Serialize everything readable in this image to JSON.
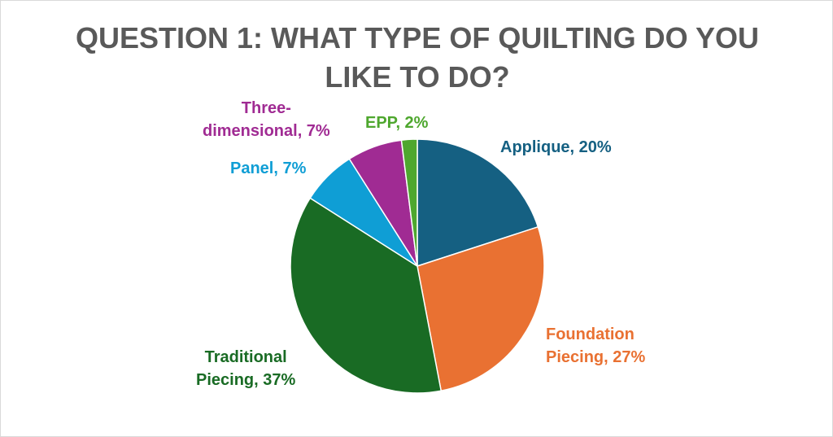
{
  "chart_data": {
    "type": "pie",
    "title_lines": [
      "QUESTION 1: WHAT TYPE OF QUILTING DO YOU",
      "LIKE TO DO?"
    ],
    "slices": [
      {
        "name": "Applique",
        "value": 20,
        "color": "#156082",
        "label_lines": [
          "Applique, 20%"
        ]
      },
      {
        "name": "Foundation Piecing",
        "value": 27,
        "color": "#E97132",
        "label_lines": [
          "Foundation",
          "Piecing, 27%"
        ]
      },
      {
        "name": "Traditional Piecing",
        "value": 37,
        "color": "#196B24",
        "label_lines": [
          "Traditional",
          "Piecing, 37%"
        ]
      },
      {
        "name": "Panel",
        "value": 7,
        "color": "#0F9ED5",
        "label_lines": [
          "Panel, 7%"
        ]
      },
      {
        "name": "Three-dimensional",
        "value": 7,
        "color": "#A02B93",
        "label_lines": [
          "Three-",
          "dimensional, 7%"
        ]
      },
      {
        "name": "EPP",
        "value": 2,
        "color": "#4EA72E",
        "label_lines": [
          "EPP, 2%"
        ]
      }
    ],
    "value_unit": "%",
    "start_angle_deg": 0,
    "direction": "clockwise",
    "legend": "none",
    "data_labels": "outside, category name and percentage"
  }
}
